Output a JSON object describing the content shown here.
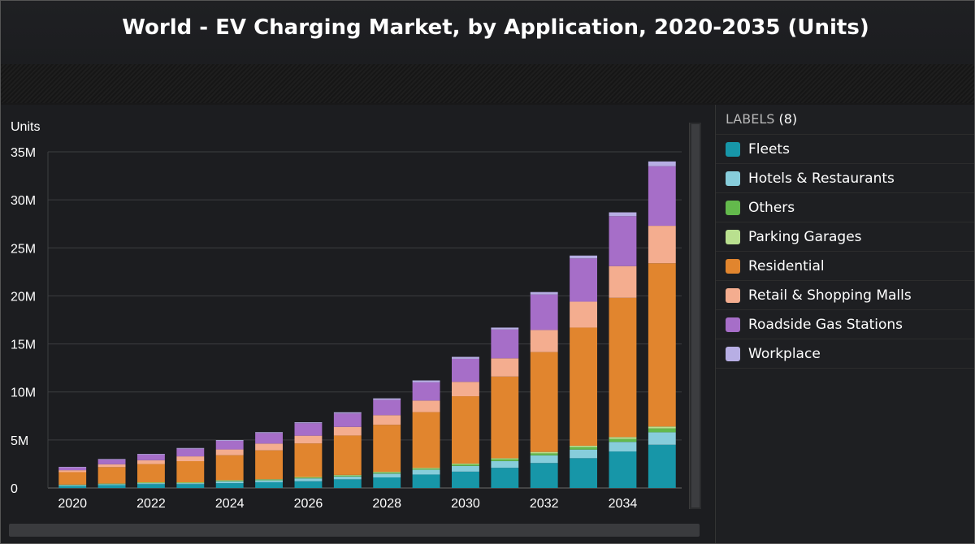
{
  "title": "World - EV Charging Market, by Application, 2020-2035 (Units)",
  "legend": {
    "header_label": "LABELS",
    "header_count": "(8)"
  },
  "chart_data": {
    "type": "bar",
    "stacked": true,
    "title": "World - EV Charging Market, by Application, 2020-2035 (Units)",
    "ylabel": "Units",
    "xlabel": "",
    "ylim": [
      0,
      35000000
    ],
    "yticks": [
      0,
      5000000,
      10000000,
      15000000,
      20000000,
      25000000,
      30000000,
      35000000
    ],
    "ytick_labels": [
      "0",
      "5M",
      "10M",
      "15M",
      "20M",
      "25M",
      "30M",
      "35M"
    ],
    "xtick_labels": [
      "2020",
      "2022",
      "2024",
      "2026",
      "2028",
      "2030",
      "2032",
      "2034"
    ],
    "grid": true,
    "categories": [
      "2020",
      "2021",
      "2022",
      "2023",
      "2024",
      "2025",
      "2026",
      "2027",
      "2028",
      "2029",
      "2030",
      "2031",
      "2032",
      "2033",
      "2034",
      "2035"
    ],
    "series": [
      {
        "name": "Fleets",
        "color": "#1796a8",
        "values": [
          200000,
          300000,
          400000,
          400000,
          500000,
          600000,
          700000,
          900000,
          1100000,
          1400000,
          1700000,
          2100000,
          2600000,
          3100000,
          3800000,
          4500000
        ]
      },
      {
        "name": "Hotels & Restaurants",
        "color": "#87cddb",
        "values": [
          100000,
          100000,
          100000,
          100000,
          200000,
          200000,
          300000,
          300000,
          400000,
          500000,
          600000,
          700000,
          800000,
          900000,
          1000000,
          1300000
        ]
      },
      {
        "name": "Others",
        "color": "#63b94c",
        "values": [
          30000,
          40000,
          50000,
          50000,
          60000,
          70000,
          80000,
          90000,
          100000,
          100000,
          150000,
          200000,
          200000,
          250000,
          300000,
          400000
        ]
      },
      {
        "name": "Parking Garages",
        "color": "#b9e08f",
        "values": [
          20000,
          30000,
          40000,
          40000,
          50000,
          50000,
          60000,
          70000,
          80000,
          100000,
          100000,
          100000,
          150000,
          150000,
          200000,
          200000
        ]
      },
      {
        "name": "Residential",
        "color": "#e1852e",
        "values": [
          1300000,
          1700000,
          1900000,
          2200000,
          2600000,
          3000000,
          3500000,
          4100000,
          4900000,
          5800000,
          7000000,
          8500000,
          10400000,
          12300000,
          14500000,
          17000000
        ]
      },
      {
        "name": "Retail & Shopping Malls",
        "color": "#f4ad8f",
        "values": [
          200000,
          300000,
          400000,
          500000,
          600000,
          700000,
          800000,
          900000,
          1000000,
          1200000,
          1500000,
          1900000,
          2300000,
          2700000,
          3300000,
          3900000
        ]
      },
      {
        "name": "Roadside Gas Stations",
        "color": "#a66ec8",
        "values": [
          300000,
          500000,
          600000,
          800000,
          900000,
          1100000,
          1300000,
          1400000,
          1600000,
          1900000,
          2400000,
          3000000,
          3700000,
          4500000,
          5200000,
          6200000
        ]
      },
      {
        "name": "Workplace",
        "color": "#b7aee4",
        "values": [
          50000,
          50000,
          60000,
          70000,
          80000,
          90000,
          100000,
          120000,
          150000,
          200000,
          200000,
          200000,
          250000,
          300000,
          400000,
          500000
        ]
      }
    ]
  }
}
